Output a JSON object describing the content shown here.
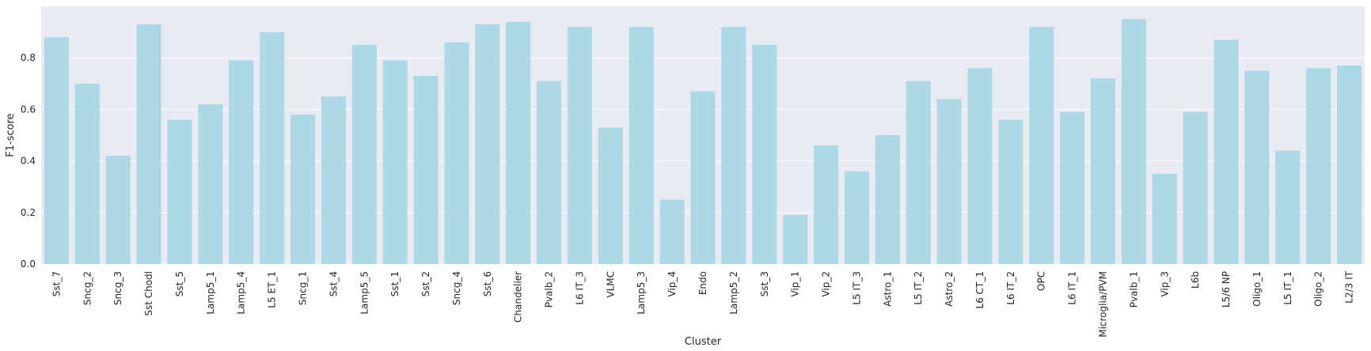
{
  "chart_data": {
    "type": "bar",
    "xlabel": "Cluster",
    "ylabel": "F1-score",
    "ylim": [
      0,
      1.0
    ],
    "yticks": [
      "0.0",
      "0.2",
      "0.4",
      "0.6",
      "0.8"
    ],
    "grid": true,
    "colors": {
      "bar": "#add8e6",
      "background": "#eaeaf2",
      "grid": "#ffffff"
    },
    "categories": [
      "Sst_7",
      "Sncg_2",
      "Sncg_3",
      "Sst Chodl",
      "Sst_5",
      "Lamp5_1",
      "Lamp5_4",
      "L5 ET_1",
      "Sncg_1",
      "Sst_4",
      "Lamp5_5",
      "Sst_1",
      "Sst_2",
      "Sncg_4",
      "Sst_6",
      "Chandelier",
      "Pvalb_2",
      "L6 IT_3",
      "VLMC",
      "Lamp5_3",
      "Vip_4",
      "Endo",
      "Lamp5_2",
      "Sst_3",
      "Vip_1",
      "Vip_2",
      "L5 IT_3",
      "Astro_1",
      "L5 IT_2",
      "Astro_2",
      "L6 CT_1",
      "L6 IT_2",
      "OPC",
      "L6 IT_1",
      "Microglia/PVM",
      "Pvalb_1",
      "Vip_3",
      "L6b",
      "L5/6 NP",
      "Oligo_1",
      "L5 IT_1",
      "Oligo_2",
      "L2/3 IT"
    ],
    "values": [
      0.88,
      0.7,
      0.42,
      0.93,
      0.56,
      0.62,
      0.79,
      0.9,
      0.58,
      0.65,
      0.85,
      0.79,
      0.73,
      0.86,
      0.93,
      0.94,
      0.71,
      0.92,
      0.53,
      0.92,
      0.25,
      0.67,
      0.92,
      0.85,
      0.19,
      0.46,
      0.36,
      0.5,
      0.71,
      0.64,
      0.76,
      0.56,
      0.92,
      0.59,
      0.72,
      0.95,
      0.35,
      0.59,
      0.87,
      0.75,
      0.44,
      0.76,
      0.77
    ]
  }
}
